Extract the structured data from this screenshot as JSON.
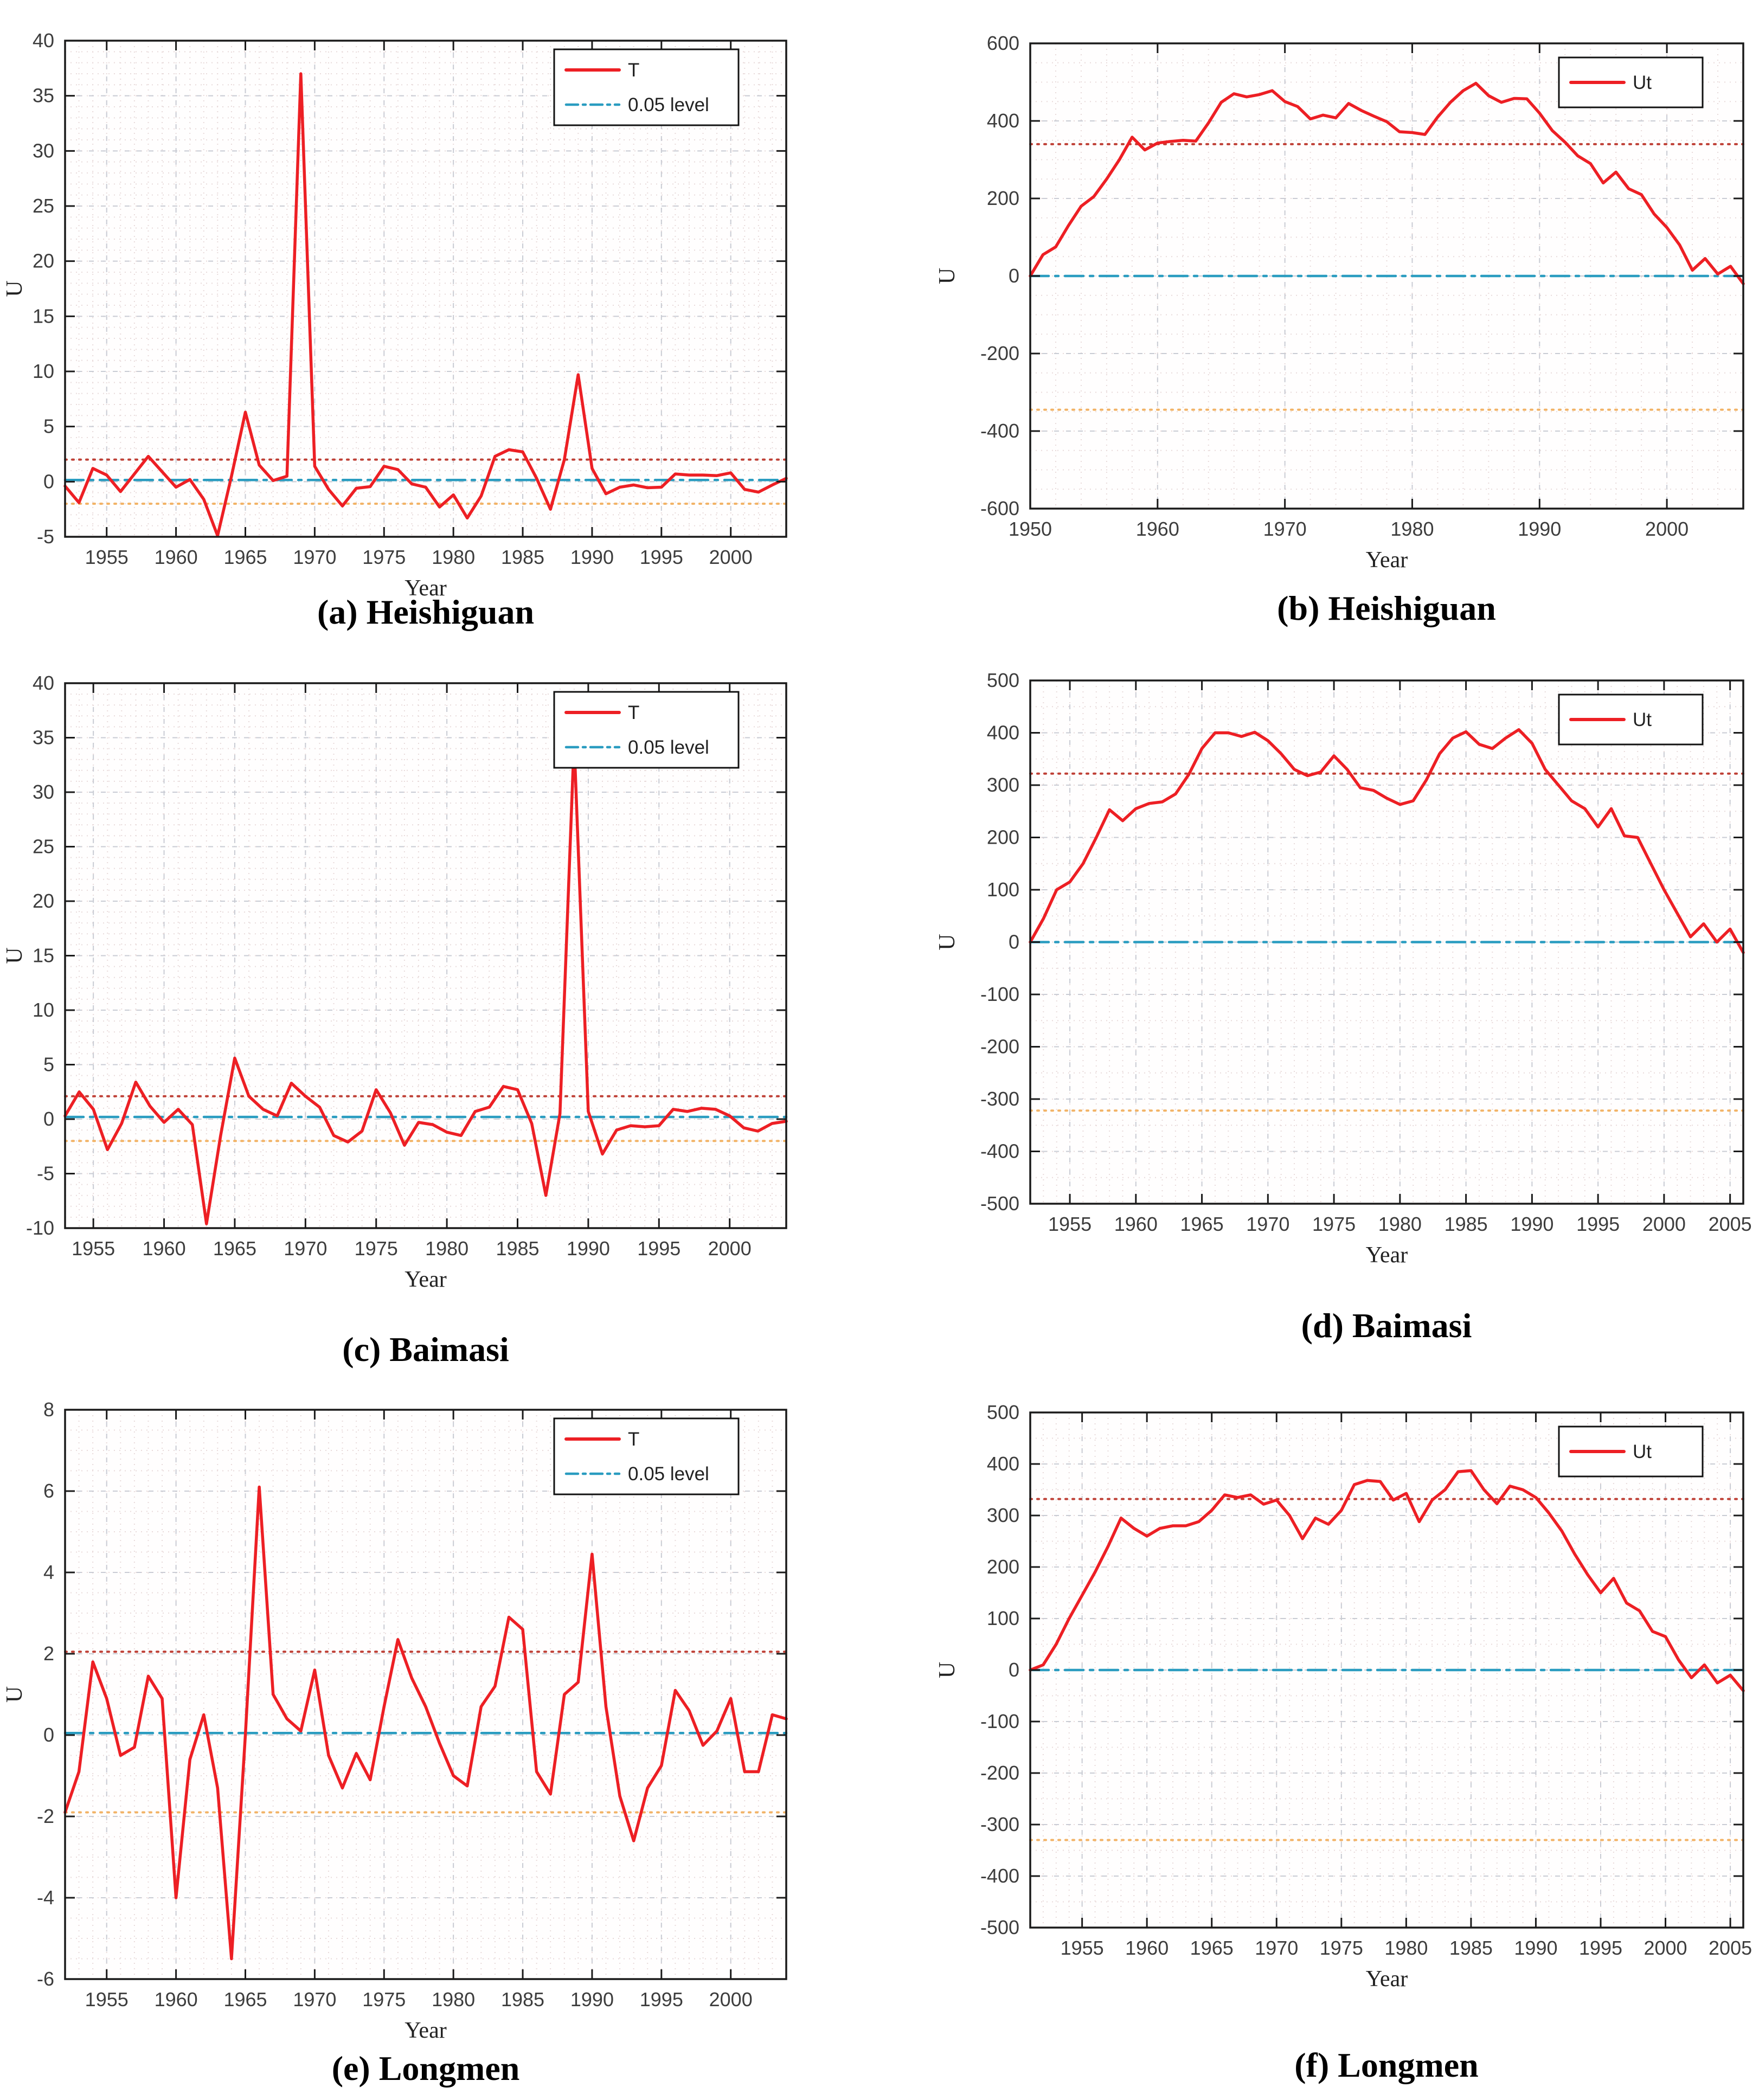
{
  "page": {
    "background": "#ffffff"
  },
  "colors": {
    "series_red": "#ed1f24",
    "level_line_blue": "#2a9cc0",
    "upper_threshold_red": "#bf4036",
    "lower_threshold_orange": "#f2b366",
    "grid_major": "#c9ccd4",
    "grid_minor": "#e8dada",
    "axis_black": "#1a1a1a",
    "tick_text": "#3d3d3d",
    "caption_text": "#000000",
    "legend_bg": "#ffffff"
  },
  "captions": {
    "a": "(a) Heishiguan",
    "b": "(b) Heishiguan",
    "c": "(c) Baimasi",
    "d": "(d) Baimasi",
    "e": "(e) Longmen",
    "f": "(f) Longmen"
  },
  "chart_data": [
    {
      "id": "a",
      "type": "line",
      "station": "Heishiguan",
      "xlabel": "Year",
      "ylabel": "U",
      "xlim": [
        1952,
        2004
      ],
      "ylim": [
        -5,
        40
      ],
      "xticks": [
        1955,
        1960,
        1965,
        1970,
        1975,
        1980,
        1985,
        1990,
        1995,
        2000
      ],
      "yticks": [
        40,
        35,
        30,
        25,
        20,
        15,
        10,
        5,
        0,
        -5
      ],
      "x_minor": 1,
      "y_minor": 1,
      "legend": [
        {
          "label": "T",
          "line": "solid"
        },
        {
          "label": "0.05 level",
          "line": "dashdot"
        }
      ],
      "level_line_value": 0.15,
      "thresholds": {
        "upper": 2,
        "lower": -2
      },
      "series": [
        {
          "name": "T",
          "start_year": 1952,
          "values": [
            -0.4,
            -1.9,
            1.2,
            0.6,
            -0.9,
            0.7,
            2.3,
            0.9,
            -0.5,
            0.2,
            -1.6,
            -4.9,
            0.5,
            6.3,
            1.5,
            0.1,
            0.5,
            37.0,
            1.4,
            -0.7,
            -2.2,
            -0.6,
            -0.45,
            1.4,
            1.1,
            -0.2,
            -0.5,
            -2.3,
            -1.2,
            -3.3,
            -1.3,
            2.3,
            2.9,
            2.7,
            0.3,
            -2.5,
            2.0,
            9.7,
            1.2,
            -1.1,
            -0.5,
            -0.3,
            -0.55,
            -0.5,
            0.7,
            0.6,
            0.6,
            0.55,
            0.8,
            -0.7,
            -0.95,
            -0.3,
            0.3
          ]
        }
      ]
    },
    {
      "id": "b",
      "type": "line",
      "station": "Heishiguan",
      "xlabel": "Year",
      "ylabel": "U",
      "xlim": [
        1950,
        2006
      ],
      "ylim": [
        -600,
        600
      ],
      "xticks": [
        1950,
        1960,
        1970,
        1980,
        1990,
        2000
      ],
      "yticks": [
        600,
        400,
        200,
        0,
        -200,
        -400,
        -600
      ],
      "x_minor": 2,
      "y_minor": 50,
      "legend": [
        {
          "label": "Ut",
          "line": "solid"
        }
      ],
      "level_line_value": 0,
      "thresholds": {
        "upper": 340,
        "lower": -345
      },
      "series": [
        {
          "name": "Ut",
          "start_year": 1950,
          "values": [
            0,
            55,
            75,
            130,
            180,
            205,
            250,
            300,
            358,
            325,
            343,
            347,
            350,
            348,
            395,
            448,
            470,
            462,
            468,
            478,
            450,
            437,
            405,
            415,
            408,
            445,
            427,
            412,
            398,
            372,
            370,
            365,
            410,
            448,
            478,
            497,
            465,
            448,
            458,
            457,
            420,
            375,
            345,
            310,
            290,
            240,
            268,
            225,
            210,
            160,
            125,
            80,
            15,
            45,
            5,
            25,
            -20
          ]
        }
      ]
    },
    {
      "id": "c",
      "type": "line",
      "station": "Baimasi",
      "xlabel": "Year",
      "ylabel": "U",
      "xlim": [
        1953,
        2004
      ],
      "ylim": [
        -10,
        40
      ],
      "xticks": [
        1955,
        1960,
        1965,
        1970,
        1975,
        1980,
        1985,
        1990,
        1995,
        2000
      ],
      "yticks": [
        40,
        35,
        30,
        25,
        20,
        15,
        10,
        5,
        0,
        -5,
        -10
      ],
      "x_minor": 1,
      "y_minor": 1,
      "legend": [
        {
          "label": "T",
          "line": "solid"
        },
        {
          "label": "0.05 level",
          "line": "dashdot"
        }
      ],
      "level_line_value": 0.2,
      "thresholds": {
        "upper": 2.1,
        "lower": -2
      },
      "series": [
        {
          "name": "T",
          "start_year": 1953,
          "values": [
            0.3,
            2.5,
            0.9,
            -2.8,
            -0.4,
            3.4,
            1.2,
            -0.3,
            0.9,
            -0.5,
            -9.6,
            -1.5,
            5.6,
            2.1,
            0.9,
            0.3,
            3.3,
            2.1,
            1.1,
            -1.5,
            -2.1,
            -1.1,
            2.7,
            0.6,
            -2.4,
            -0.3,
            -0.5,
            -1.2,
            -1.5,
            0.7,
            1.1,
            3.0,
            2.7,
            -0.4,
            -7.0,
            0.5,
            34.7,
            0.7,
            -3.2,
            -1.0,
            -0.6,
            -0.7,
            -0.6,
            0.9,
            0.7,
            1.0,
            0.9,
            0.3,
            -0.8,
            -1.1,
            -0.4,
            -0.2
          ]
        }
      ]
    },
    {
      "id": "d",
      "type": "line",
      "station": "Baimasi",
      "xlabel": "Year",
      "ylabel": "U",
      "xlim": [
        1952,
        2006
      ],
      "ylim": [
        -500,
        500
      ],
      "xticks": [
        1955,
        1960,
        1965,
        1970,
        1975,
        1980,
        1985,
        1990,
        1995,
        2000,
        2005
      ],
      "yticks": [
        500,
        400,
        300,
        200,
        100,
        0,
        -100,
        -200,
        -300,
        -400,
        -500
      ],
      "x_minor": 1,
      "y_minor": 50,
      "legend": [
        {
          "label": "Ut",
          "line": "solid"
        }
      ],
      "level_line_value": 0,
      "thresholds": {
        "upper": 322,
        "lower": -322
      },
      "series": [
        {
          "name": "Ut",
          "start_year": 1952,
          "values": [
            0,
            45,
            100,
            115,
            150,
            200,
            253,
            232,
            255,
            265,
            268,
            283,
            320,
            370,
            400,
            400,
            393,
            401,
            385,
            360,
            330,
            318,
            325,
            356,
            330,
            295,
            290,
            275,
            263,
            270,
            310,
            360,
            390,
            402,
            378,
            370,
            390,
            406,
            380,
            330,
            300,
            270,
            255,
            220,
            255,
            203,
            200,
            150,
            100,
            55,
            10,
            35,
            0,
            25,
            -20
          ]
        }
      ]
    },
    {
      "id": "e",
      "type": "line",
      "station": "Longmen",
      "xlabel": "Year",
      "ylabel": "U",
      "xlim": [
        1952,
        2004
      ],
      "ylim": [
        -6,
        8
      ],
      "xticks": [
        1955,
        1960,
        1965,
        1970,
        1975,
        1980,
        1985,
        1990,
        1995,
        2000
      ],
      "yticks": [
        8,
        6,
        4,
        2,
        0,
        -2,
        -4,
        -6
      ],
      "x_minor": 1,
      "y_minor": 0.5,
      "legend": [
        {
          "label": "T",
          "line": "solid"
        },
        {
          "label": "0.05 level",
          "line": "dashdot"
        }
      ],
      "level_line_value": 0.05,
      "thresholds": {
        "upper": 2.05,
        "lower": -1.9
      },
      "series": [
        {
          "name": "T",
          "start_year": 1952,
          "values": [
            -1.9,
            -0.9,
            1.8,
            0.9,
            -0.5,
            -0.3,
            1.45,
            0.9,
            -4.0,
            -0.6,
            0.5,
            -1.3,
            -5.5,
            0.0,
            6.1,
            1.0,
            0.4,
            0.1,
            1.6,
            -0.5,
            -1.3,
            -0.45,
            -1.1,
            0.7,
            2.35,
            1.4,
            0.7,
            -0.2,
            -1.0,
            -1.25,
            0.7,
            1.2,
            2.9,
            2.6,
            -0.9,
            -1.45,
            1.0,
            1.3,
            4.45,
            0.7,
            -1.5,
            -2.6,
            -1.3,
            -0.75,
            1.1,
            0.6,
            -0.25,
            0.1,
            0.9,
            -0.9,
            -0.9,
            0.5,
            0.4
          ]
        }
      ]
    },
    {
      "id": "f",
      "type": "line",
      "station": "Longmen",
      "xlabel": "Year",
      "ylabel": "U",
      "xlim": [
        1951,
        2006
      ],
      "ylim": [
        -500,
        500
      ],
      "xticks": [
        1955,
        1960,
        1965,
        1970,
        1975,
        1980,
        1985,
        1990,
        1995,
        2000,
        2005
      ],
      "yticks": [
        500,
        400,
        300,
        200,
        100,
        0,
        -100,
        -200,
        -300,
        -400,
        -500
      ],
      "x_minor": 1,
      "y_minor": 50,
      "legend": [
        {
          "label": "Ut",
          "line": "solid"
        }
      ],
      "level_line_value": 0,
      "thresholds": {
        "upper": 332,
        "lower": -330
      },
      "series": [
        {
          "name": "Ut",
          "start_year": 1951,
          "values": [
            0,
            10,
            50,
            100,
            145,
            190,
            240,
            295,
            275,
            260,
            275,
            280,
            280,
            288,
            310,
            340,
            335,
            340,
            322,
            330,
            300,
            255,
            295,
            283,
            310,
            360,
            368,
            366,
            330,
            343,
            288,
            330,
            350,
            385,
            387,
            350,
            323,
            357,
            350,
            335,
            305,
            270,
            225,
            185,
            150,
            178,
            130,
            115,
            75,
            65,
            20,
            -15,
            10,
            -25,
            -10,
            -40
          ]
        }
      ]
    }
  ]
}
